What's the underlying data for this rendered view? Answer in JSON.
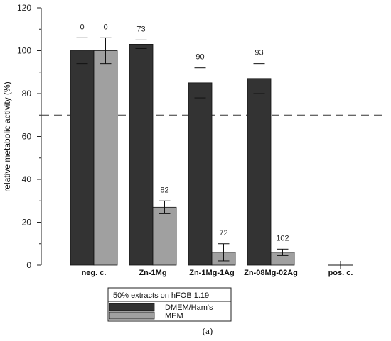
{
  "chart_data": {
    "type": "bar",
    "categories": [
      "neg. c.",
      "Zn-1Mg",
      "Zn-1Mg-1Ag",
      "Zn-08Mg-02Ag",
      "pos. c."
    ],
    "ylabel": "relative metabolic activity (%)",
    "xlabel": "",
    "ylim": [
      0,
      120
    ],
    "yticks": [
      0,
      20,
      40,
      60,
      80,
      100,
      120
    ],
    "reference_line": 70,
    "series": [
      {
        "name": "DMEM/Ham's",
        "color": "#333333",
        "values": [
          100,
          103,
          85,
          87,
          0
        ],
        "errors": [
          6,
          2,
          7,
          7,
          0
        ],
        "annotations": [
          "0",
          "73",
          "90",
          "93",
          ""
        ]
      },
      {
        "name": "MEM",
        "color": "#a0a0a0",
        "values": [
          100,
          27,
          6,
          6,
          0
        ],
        "errors": [
          6,
          3,
          4,
          1.5,
          2
        ],
        "annotations": [
          "0",
          "82",
          "72",
          "102",
          ""
        ]
      }
    ],
    "legend": {
      "title": "50% extracts on hFOB 1.19",
      "position": "bottom-center",
      "entries": [
        "DMEM/Ham's",
        "MEM"
      ]
    },
    "grid": false
  },
  "panel_label": "(a)"
}
